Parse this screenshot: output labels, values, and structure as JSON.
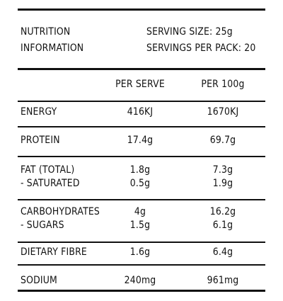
{
  "header": {
    "title_line1": "NUTRITION",
    "title_line2": "INFORMATION",
    "serving_size": "SERVING SIZE: 25g",
    "servings_per_pack": "SERVINGS PER PACK: 20"
  },
  "columns": {
    "per_serve": "PER SERVE",
    "per_100g": "PER 100g"
  },
  "rows": {
    "energy": {
      "label": "ENERGY",
      "per_serve": "416KJ",
      "per_100g": "1670KJ"
    },
    "protein": {
      "label": "PROTEIN",
      "per_serve": "17.4g",
      "per_100g": "69.7g"
    },
    "fat_total": {
      "label": "FAT (TOTAL)",
      "per_serve": "1.8g",
      "per_100g": "7.3g"
    },
    "saturated": {
      "label": "- SATURATED",
      "per_serve": "0.5g",
      "per_100g": "1.9g"
    },
    "carbohydrates": {
      "label": "CARBOHYDRATES",
      "per_serve": "4g",
      "per_100g": "16.2g"
    },
    "sugars": {
      "label": "- SUGARS",
      "per_serve": "1.5g",
      "per_100g": "6.1g"
    },
    "dietary_fibre": {
      "label": "DIETARY FIBRE",
      "per_serve": "1.6g",
      "per_100g": "6.4g"
    },
    "sodium": {
      "label": "SODIUM",
      "per_serve": "240mg",
      "per_100g": "961mg"
    }
  }
}
